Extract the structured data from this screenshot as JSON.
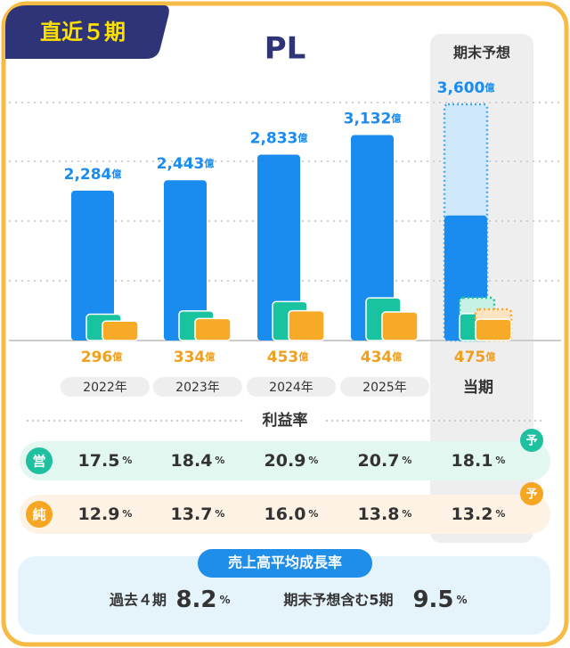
{
  "badge": "直近５期",
  "chart_data": {
    "type": "bar",
    "title": "PL",
    "forecast_label": "期末予想",
    "categories": [
      "2022年",
      "2023年",
      "2024年",
      "2025年",
      "当期"
    ],
    "series": [
      {
        "color": "#1a8cf0",
        "values": [
          2284,
          2443,
          2833,
          3132,
          3600
        ],
        "value_labels": [
          "2,284",
          "2,443",
          "2,833",
          "3,132",
          "3,600"
        ],
        "unit": "億"
      },
      {
        "color": "#19c39f",
        "values": [
          400,
          450,
          592,
          648,
          652
        ]
      },
      {
        "color": "#f7a928",
        "values": [
          296,
          334,
          453,
          434,
          475
        ],
        "unit": "億"
      }
    ],
    "forecast_progress": [
      1905,
      410,
      325
    ]
  },
  "margins": {
    "title": "利益率",
    "forecast_badge": "予",
    "rows": [
      {
        "label": "営",
        "values": [
          "17.5",
          "18.4",
          "20.9",
          "20.7",
          "18.1"
        ],
        "unit": "%"
      },
      {
        "label": "純",
        "values": [
          "12.9",
          "13.7",
          "16.0",
          "13.8",
          "13.2"
        ],
        "unit": "%"
      }
    ]
  },
  "growth": {
    "title": "売上高平均成長率",
    "items": [
      {
        "label": "過去４期",
        "value": "8.2",
        "unit": "%"
      },
      {
        "label": "期末予想含む5期",
        "value": "9.5",
        "unit": "%"
      }
    ]
  }
}
